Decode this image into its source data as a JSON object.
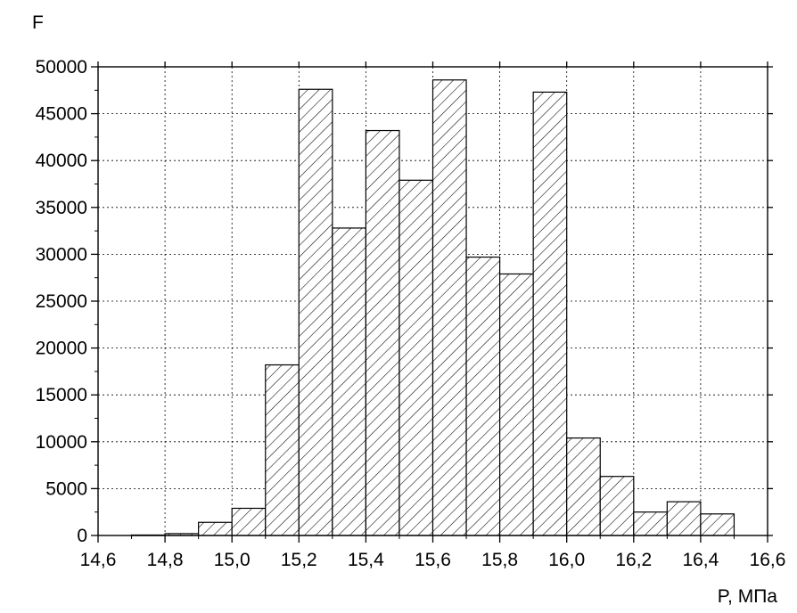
{
  "chart_data": {
    "type": "bar",
    "title": "",
    "ylabel": "F",
    "xlabel": "P, МПа",
    "xlim": [
      14.6,
      16.6
    ],
    "ylim": [
      0,
      50000
    ],
    "x_ticks": [
      14.6,
      14.8,
      15.0,
      15.2,
      15.4,
      15.6,
      15.8,
      16.0,
      16.2,
      16.4,
      16.6
    ],
    "x_tick_labels": [
      "14,6",
      "14,8",
      "15,0",
      "15,2",
      "15,4",
      "15,6",
      "15,8",
      "16,0",
      "16,2",
      "16,4",
      "16,6"
    ],
    "y_ticks": [
      0,
      5000,
      10000,
      15000,
      20000,
      25000,
      30000,
      35000,
      40000,
      45000,
      50000
    ],
    "y_tick_labels": [
      "0",
      "5000",
      "10000",
      "15000",
      "20000",
      "25000",
      "30000",
      "35000",
      "40000",
      "45000",
      "50000"
    ],
    "bin_width": 0.1,
    "bins": [
      {
        "x_start": 14.7,
        "x_end": 14.8,
        "value": 50
      },
      {
        "x_start": 14.8,
        "x_end": 14.9,
        "value": 200
      },
      {
        "x_start": 14.9,
        "x_end": 15.0,
        "value": 1400
      },
      {
        "x_start": 15.0,
        "x_end": 15.1,
        "value": 2900
      },
      {
        "x_start": 15.1,
        "x_end": 15.2,
        "value": 18200
      },
      {
        "x_start": 15.2,
        "x_end": 15.3,
        "value": 47600
      },
      {
        "x_start": 15.3,
        "x_end": 15.4,
        "value": 32800
      },
      {
        "x_start": 15.4,
        "x_end": 15.5,
        "value": 43200
      },
      {
        "x_start": 15.5,
        "x_end": 15.6,
        "value": 37900
      },
      {
        "x_start": 15.6,
        "x_end": 15.7,
        "value": 48600
      },
      {
        "x_start": 15.7,
        "x_end": 15.8,
        "value": 29700
      },
      {
        "x_start": 15.8,
        "x_end": 15.9,
        "value": 27900
      },
      {
        "x_start": 15.9,
        "x_end": 16.0,
        "value": 47300
      },
      {
        "x_start": 16.0,
        "x_end": 16.1,
        "value": 10400
      },
      {
        "x_start": 16.1,
        "x_end": 16.2,
        "value": 6300
      },
      {
        "x_start": 16.2,
        "x_end": 16.3,
        "value": 2500
      },
      {
        "x_start": 16.3,
        "x_end": 16.4,
        "value": 3600
      },
      {
        "x_start": 16.4,
        "x_end": 16.5,
        "value": 2300
      }
    ],
    "grid": true,
    "bar_fill": "hatched",
    "bar_color": "#000000",
    "background": "#ffffff"
  }
}
